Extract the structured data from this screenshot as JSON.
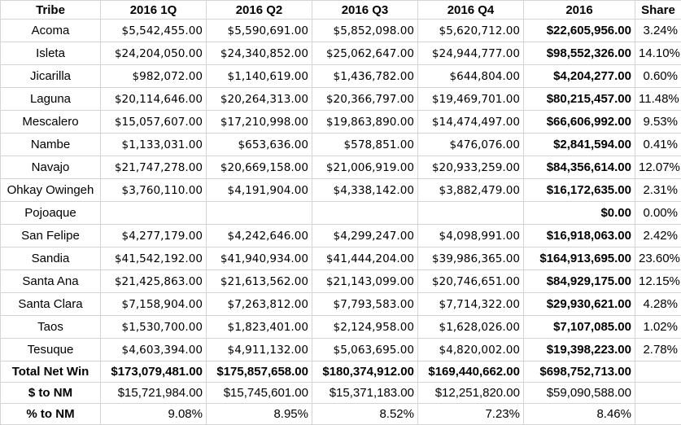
{
  "headers": [
    "Tribe",
    "2016 1Q",
    "2016 Q2",
    "2016 Q3",
    "2016 Q4",
    "2016",
    "Share"
  ],
  "rows": [
    [
      "Acoma",
      "$5,542,455.00",
      "$5,590,691.00",
      "$5,852,098.00",
      "$5,620,712.00",
      "$22,605,956.00",
      "3.24%"
    ],
    [
      "Isleta",
      "$24,204,050.00",
      "$24,340,852.00",
      "$25,062,647.00",
      "$24,944,777.00",
      "$98,552,326.00",
      "14.10%"
    ],
    [
      "Jicarilla",
      "$982,072.00",
      "$1,140,619.00",
      "$1,436,782.00",
      "$644,804.00",
      "$4,204,277.00",
      "0.60%"
    ],
    [
      "Laguna",
      "$20,114,646.00",
      "$20,264,313.00",
      "$20,366,797.00",
      "$19,469,701.00",
      "$80,215,457.00",
      "11.48%"
    ],
    [
      "Mescalero",
      "$15,057,607.00",
      "$17,210,998.00",
      "$19,863,890.00",
      "$14,474,497.00",
      "$66,606,992.00",
      "9.53%"
    ],
    [
      "Nambe",
      "$1,133,031.00",
      "$653,636.00",
      "$578,851.00",
      "$476,076.00",
      "$2,841,594.00",
      "0.41%"
    ],
    [
      "Navajo",
      "$21,747,278.00",
      "$20,669,158.00",
      "$21,006,919.00",
      "$20,933,259.00",
      "$84,356,614.00",
      "12.07%"
    ],
    [
      "Ohkay Owingeh",
      "$3,760,110.00",
      "$4,191,904.00",
      "$4,338,142.00",
      "$3,882,479.00",
      "$16,172,635.00",
      "2.31%"
    ],
    [
      "Pojoaque",
      "",
      "",
      "",
      "",
      "$0.00",
      "0.00%"
    ],
    [
      "San Felipe",
      "$4,277,179.00",
      "$4,242,646.00",
      "$4,299,247.00",
      "$4,098,991.00",
      "$16,918,063.00",
      "2.42%"
    ],
    [
      "Sandia",
      "$41,542,192.00",
      "$41,940,934.00",
      "$41,444,204.00",
      "$39,986,365.00",
      "$164,913,695.00",
      "23.60%"
    ],
    [
      "Santa Ana",
      "$21,425,863.00",
      "$21,613,562.00",
      "$21,143,099.00",
      "$20,746,651.00",
      "$84,929,175.00",
      "12.15%"
    ],
    [
      "Santa Clara",
      "$7,158,904.00",
      "$7,263,812.00",
      "$7,793,583.00",
      "$7,714,322.00",
      "$29,930,621.00",
      "4.28%"
    ],
    [
      "Taos",
      "$1,530,700.00",
      "$1,823,401.00",
      "$2,124,958.00",
      "$1,628,026.00",
      "$7,107,085.00",
      "1.02%"
    ],
    [
      "Tesuque",
      "$4,603,394.00",
      "$4,911,132.00",
      "$5,063,695.00",
      "$4,820,002.00",
      "$19,398,223.00",
      "2.78%"
    ]
  ],
  "footer": [
    {
      "style": "bold",
      "cells": [
        "Total Net Win",
        "$173,079,481.00",
        "$175,857,658.00",
        "$180,374,912.00",
        "$169,440,662.00",
        "$698,752,713.00",
        ""
      ]
    },
    {
      "style": "plain",
      "cells": [
        "$ to NM",
        "$15,721,984.00",
        "$15,745,601.00",
        "$15,371,183.00",
        "$12,251,820.00",
        "$59,090,588.00",
        ""
      ]
    },
    {
      "style": "plain",
      "cells": [
        "% to NM",
        "9.08%",
        "8.95%",
        "8.52%",
        "7.23%",
        "8.46%",
        ""
      ]
    }
  ]
}
